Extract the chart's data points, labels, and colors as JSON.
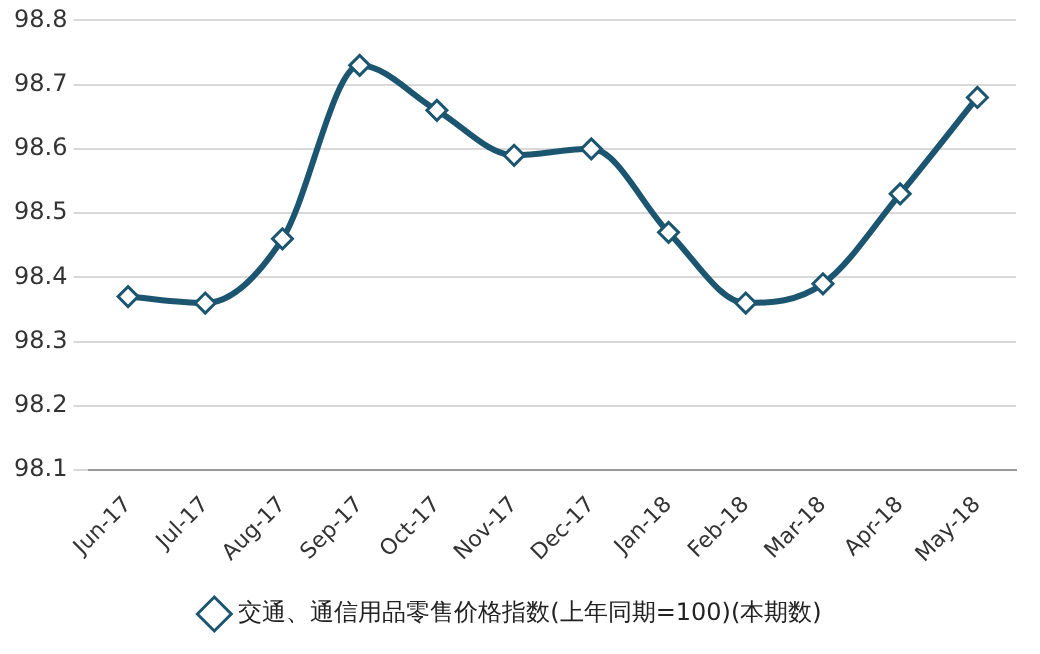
{
  "chart_data": {
    "type": "line",
    "categories": [
      "Jun-17",
      "Jul-17",
      "Aug-17",
      "Sep-17",
      "Oct-17",
      "Nov-17",
      "Dec-17",
      "Jan-18",
      "Feb-18",
      "Mar-18",
      "Apr-18",
      "May-18"
    ],
    "series": [
      {
        "name": "交通、通信用品零售价格指数(上年同期=100)(本期数)",
        "color": "#1b5570",
        "values": [
          98.37,
          98.36,
          98.46,
          98.73,
          98.66,
          98.59,
          98.6,
          98.47,
          98.36,
          98.39,
          98.53,
          98.68
        ]
      }
    ],
    "ylim": [
      98.1,
      98.8
    ],
    "yticks": [
      98.1,
      98.2,
      98.3,
      98.4,
      98.5,
      98.6,
      98.7,
      98.8
    ],
    "grid": "y",
    "legend": "bottom",
    "marker": "diamond",
    "line_style": "solid"
  }
}
